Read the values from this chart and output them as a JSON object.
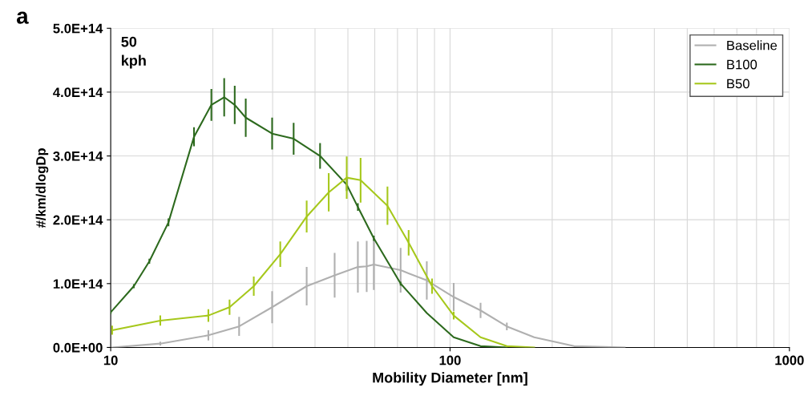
{
  "chart_data": {
    "type": "line",
    "xlabel": "Mobility Diameter [nm]",
    "ylabel": "#/km/dlogDp",
    "annotations": [
      "a",
      "50\nkph"
    ],
    "log": "x",
    "grid": true,
    "legend": "top right",
    "marker": "none",
    "line_style": "solid",
    "xlim": [
      10,
      1000
    ],
    "xticks": [
      10,
      100,
      1000
    ],
    "ylim": [
      0,
      500000000000000.0
    ],
    "yticks": [
      {
        "value": 0,
        "label": "0.0E+00"
      },
      {
        "value": 100000000000000.0,
        "label": "1.0E+14"
      },
      {
        "value": 200000000000000.0,
        "label": "2.0E+14"
      },
      {
        "value": 300000000000000.0,
        "label": "3.0E+14"
      },
      {
        "value": 400000000000000.0,
        "label": "4.0E+14"
      },
      {
        "value": 500000000000000.0,
        "label": "5.0E+14"
      }
    ],
    "series": [
      {
        "name": "Baseline",
        "color": "#b0b0b0",
        "x": [
          10.1,
          14.0,
          19.4,
          23.9,
          29.9,
          37.8,
          45.7,
          53.5,
          56.8,
          59.6,
          71.5,
          85.4,
          102.5,
          123,
          147,
          177,
          232,
          327
        ],
        "values": [
          0.0,
          6000000000000.0,
          19000000000000.0,
          33000000000000.0,
          63000000000000.0,
          96000000000000.0,
          113000000000000.0,
          126000000000000.0,
          127000000000000.0,
          130000000000000.0,
          121000000000000.0,
          105000000000000.0,
          79000000000000.0,
          58000000000000.0,
          33000000000000.0,
          16000000000000.0,
          2000000000000.0,
          0
        ],
        "errors": [
          null,
          3000000000000.0,
          8000000000000.0,
          15000000000000.0,
          25000000000000.0,
          30000000000000.0,
          35000000000000.0,
          40000000000000.0,
          40000000000000.0,
          40000000000000.0,
          35000000000000.0,
          30000000000000.0,
          22000000000000.0,
          12000000000000.0,
          6000000000000.0,
          null,
          null,
          null
        ]
      },
      {
        "name": "B100",
        "color": "#2d6a1e",
        "x": [
          10,
          11.7,
          13.0,
          14.8,
          17.6,
          19.8,
          21.6,
          23.2,
          25.0,
          29.9,
          34.6,
          41.4,
          49.6,
          53.5,
          59.6,
          71.5,
          85.4,
          102.5,
          123,
          147
        ],
        "values": [
          55000000000000.0,
          96000000000000.0,
          135000000000000.0,
          196000000000000.0,
          330000000000000.0,
          380000000000000.0,
          392000000000000.0,
          380000000000000.0,
          360000000000000.0,
          335000000000000.0,
          327000000000000.0,
          300000000000000.0,
          255000000000000.0,
          220000000000000.0,
          171000000000000.0,
          100000000000000.0,
          54000000000000.0,
          16000000000000.0,
          2000000000000.0,
          0
        ],
        "errors": [
          3000000000000.0,
          3000000000000.0,
          4000000000000.0,
          6000000000000.0,
          15000000000000.0,
          25000000000000.0,
          30000000000000.0,
          30000000000000.0,
          30000000000000.0,
          25000000000000.0,
          25000000000000.0,
          20000000000000.0,
          10000000000000.0,
          6000000000000.0,
          4000000000000.0,
          3000000000000.0,
          null,
          null,
          null,
          null
        ]
      },
      {
        "name": "B50",
        "color": "#a6c81c",
        "x": [
          10.1,
          14.0,
          19.4,
          22.4,
          26.4,
          31.6,
          37.8,
          43.9,
          49.6,
          54.5,
          65.4,
          75.5,
          88.5,
          102.5,
          123,
          147,
          177
        ],
        "values": [
          27000000000000.0,
          42000000000000.0,
          50000000000000.0,
          63000000000000.0,
          96000000000000.0,
          146000000000000.0,
          205000000000000.0,
          243000000000000.0,
          266000000000000.0,
          262000000000000.0,
          222000000000000.0,
          164000000000000.0,
          96000000000000.0,
          50000000000000.0,
          16000000000000.0,
          2000000000000.0,
          0
        ],
        "errors": [
          7000000000000.0,
          8000000000000.0,
          10000000000000.0,
          12000000000000.0,
          15000000000000.0,
          20000000000000.0,
          25000000000000.0,
          30000000000000.0,
          33000000000000.0,
          35000000000000.0,
          30000000000000.0,
          20000000000000.0,
          12000000000000.0,
          6000000000000.0,
          null,
          null,
          null
        ]
      }
    ]
  }
}
